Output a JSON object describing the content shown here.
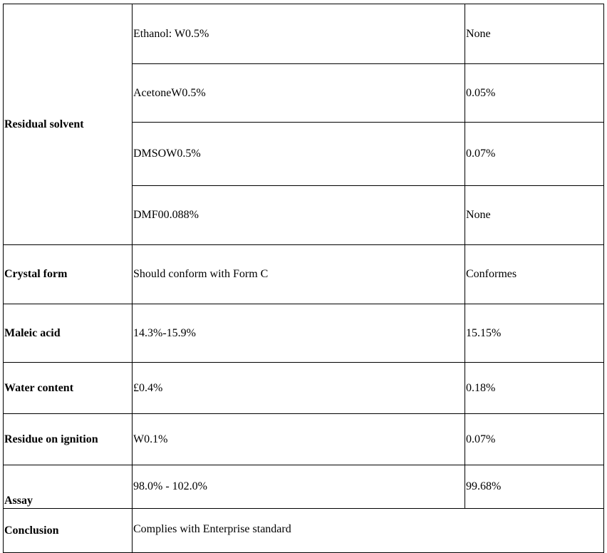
{
  "rows": {
    "residual_solvent": {
      "label": "Residual solvent",
      "items": [
        {
          "spec": "Ethanol: W0.5%",
          "result": "None"
        },
        {
          "spec": "AcetoneW0.5%",
          "result": "0.05%"
        },
        {
          "spec": "DMSOW0.5%",
          "result": "0.07%"
        },
        {
          "spec": "DMF00.088%",
          "result": "None"
        }
      ]
    },
    "crystal_form": {
      "label": "Crystal form",
      "spec": "Should conform with Form C",
      "result": "Conformes"
    },
    "maleic_acid": {
      "label": "Maleic acid",
      "spec": "14.3%-15.9%",
      "result": "15.15%"
    },
    "water_content": {
      "label": "Water content",
      "spec": "£0.4%",
      "result": "0.18%"
    },
    "residue_on_ignition": {
      "label": "Residue on ignition",
      "spec": "W0.1%",
      "result": "0.07%"
    },
    "assay": {
      "label": "Assay",
      "spec": "98.0% - 102.0%",
      "result": "99.68%"
    },
    "conclusion": {
      "label": "Conclusion",
      "value": "Complies with Enterprise standard"
    }
  }
}
